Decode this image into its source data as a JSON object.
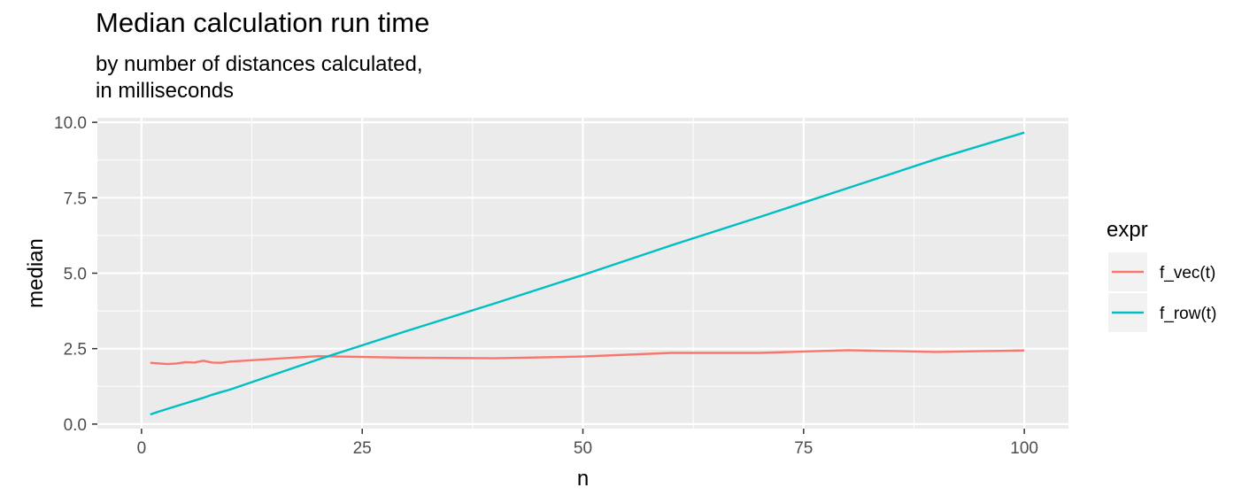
{
  "chart_data": {
    "type": "line",
    "title": "Median calculation run time",
    "subtitle_lines": [
      "by number of distances calculated,",
      "in milliseconds"
    ],
    "xlabel": "n",
    "ylabel": "median",
    "xlim": [
      -5,
      105
    ],
    "ylim": [
      -0.15,
      10.15
    ],
    "x_ticks": [
      0,
      25,
      50,
      75,
      100
    ],
    "x_tick_labels": [
      "0",
      "25",
      "50",
      "75",
      "100"
    ],
    "y_ticks": [
      0,
      2.5,
      5,
      7.5,
      10
    ],
    "y_tick_labels": [
      "0.0",
      "2.5",
      "5.0",
      "7.5",
      "10.0"
    ],
    "grid": true,
    "legend": {
      "title": "expr",
      "position": "right"
    },
    "series": [
      {
        "name": "f_vec(t)",
        "color": "#F8766D",
        "x": [
          1,
          2,
          3,
          4,
          5,
          6,
          7,
          8,
          9,
          10,
          20,
          30,
          40,
          50,
          60,
          70,
          80,
          90,
          100
        ],
        "y": [
          2.03,
          2.01,
          1.99,
          2.01,
          2.05,
          2.04,
          2.1,
          2.04,
          2.03,
          2.07,
          2.25,
          2.2,
          2.18,
          2.24,
          2.36,
          2.36,
          2.45,
          2.39,
          2.44
        ]
      },
      {
        "name": "f_row(t)",
        "color": "#00BFC4",
        "x": [
          1,
          2,
          3,
          4,
          5,
          6,
          7,
          8,
          9,
          10,
          20,
          30,
          40,
          50,
          60,
          70,
          80,
          90,
          100
        ],
        "y": [
          0.32,
          0.42,
          0.51,
          0.6,
          0.69,
          0.78,
          0.87,
          0.97,
          1.06,
          1.14,
          2.14,
          3.08,
          4.0,
          4.94,
          5.92,
          6.86,
          7.82,
          8.78,
          9.66
        ]
      }
    ]
  }
}
